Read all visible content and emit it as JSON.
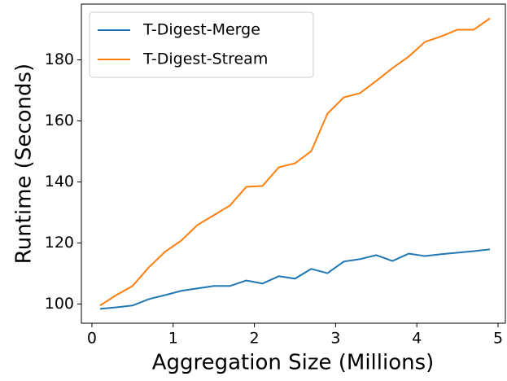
{
  "chart_data": {
    "type": "line",
    "xlabel": "Aggregation  Size (Millions)",
    "ylabel": "Runtime (Seconds)",
    "x": [
      0.1,
      0.3,
      0.5,
      0.7,
      0.9,
      1.1,
      1.3,
      1.5,
      1.7,
      1.9,
      2.1,
      2.3,
      2.5,
      2.7,
      2.9,
      3.1,
      3.3,
      3.5,
      3.7,
      3.9,
      4.1,
      4.3,
      4.5,
      4.7,
      4.9
    ],
    "series": [
      {
        "name": "T-Digest-Merge",
        "color": "#1f77b4",
        "values": [
          98.4,
          98.9,
          99.5,
          101.6,
          102.9,
          104.3,
          105.1,
          105.9,
          105.9,
          107.7,
          106.7,
          109.1,
          108.3,
          111.5,
          110.1,
          113.9,
          114.7,
          116.0,
          114.1,
          116.5,
          115.7,
          116.3,
          116.8,
          117.3,
          117.9
        ]
      },
      {
        "name": "T-Digest-Stream",
        "color": "#ff7f0e",
        "values": [
          99.5,
          102.9,
          105.9,
          112.0,
          117.1,
          120.8,
          125.9,
          129.1,
          132.3,
          138.4,
          138.7,
          144.8,
          146.1,
          150.1,
          162.4,
          167.7,
          169.1,
          173.1,
          177.3,
          181.1,
          185.9,
          187.7,
          189.9,
          189.9,
          193.6
        ]
      }
    ],
    "xlim": [
      -0.13,
      5.09
    ],
    "xticks": [
      0,
      1,
      2,
      3,
      4,
      5
    ],
    "ylim": [
      93.7,
      198.3
    ],
    "yticks": [
      100,
      120,
      140,
      160,
      180
    ],
    "legend": "upper-left"
  }
}
